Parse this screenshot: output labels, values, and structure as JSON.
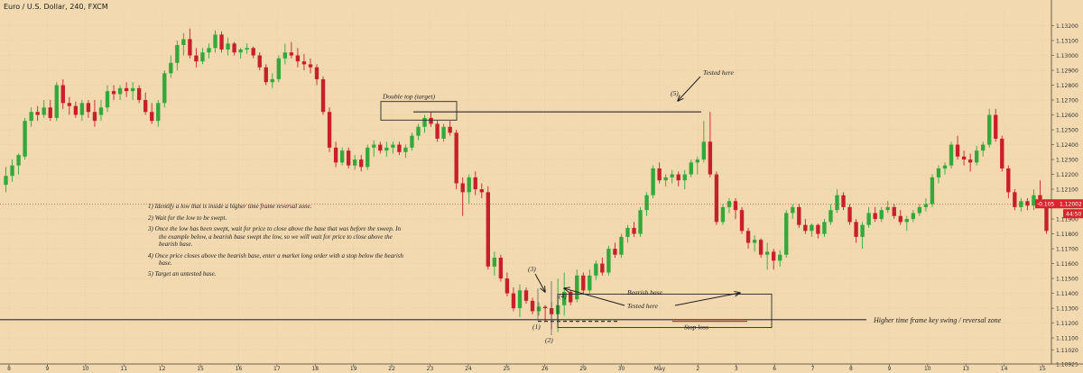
{
  "header": {
    "title": "Euro / U.S. Dollar, 240, FXCM"
  },
  "colors": {
    "background": "#f2d9b0",
    "up": "#35a83b",
    "down": "#c8202a",
    "text": "#222222",
    "badge_red": "#d8242c"
  },
  "instructions": [
    "1) Identify a low that is inside a higher time frame reversal zone.",
    "2) Wait for the low to be swept.",
    "3) Once the low has been swept, wait for price to close above the base that was before the sweep. In the example below, a bearish base swept the low, so we will wait for price to close above the bearish base.",
    "4) Once price closes above the bearish base, enter a market long order with a stop below the bearish base.",
    "5) Target an untested base."
  ],
  "annotations": {
    "double_top": "Double top (target)",
    "tested_here_top": "Tested here",
    "label_5": "(5)",
    "label_3": "(3)",
    "label_4": "(4)",
    "label_1": "(1)",
    "label_2": "(2)",
    "bearish_base": "Bearish base",
    "tested_here_bottom": "Tested here",
    "stop_loss": "Stop loss",
    "htf_zone": "Higher time frame key swing / reversal zone"
  },
  "badges": {
    "change": "-0.105",
    "price": "1.12002",
    "countdown": "44:50"
  },
  "chart_data": {
    "type": "candlestick",
    "title": "Euro / U.S. Dollar, 240, FXCM",
    "ylim": [
      1.10925,
      1.133
    ],
    "y_ticks": [
      "1.13200",
      "1.13100",
      "1.13000",
      "1.12900",
      "1.12800",
      "1.12700",
      "1.12600",
      "1.12500",
      "1.12400",
      "1.12300",
      "1.12200",
      "1.12100",
      "1.12000",
      "1.11900",
      "1.11800",
      "1.11700",
      "1.11600",
      "1.11500",
      "1.11400",
      "1.11300",
      "1.11200",
      "1.11100",
      "1.11020",
      "1.10925"
    ],
    "x_ticks": [
      "8",
      "9",
      "10",
      "11",
      "12",
      "15",
      "16",
      "17",
      "18",
      "19",
      "22",
      "23",
      "24",
      "25",
      "26",
      "29",
      "30",
      "May",
      "2",
      "3",
      "6",
      "7",
      "8",
      "9",
      "10",
      "13",
      "14",
      "15"
    ],
    "key_levels": {
      "double_top": 1.1262,
      "bearish_base_high": 1.11395,
      "bearish_base_low": 1.11255,
      "htf_zone": 1.11223,
      "stop_loss": 1.11212
    },
    "candles": [
      [
        1.1213,
        1.1225,
        1.1208,
        1.1219
      ],
      [
        1.1219,
        1.123,
        1.1215,
        1.1226
      ],
      [
        1.1226,
        1.1234,
        1.122,
        1.1233
      ],
      [
        1.1232,
        1.1258,
        1.123,
        1.1256
      ],
      [
        1.1256,
        1.1265,
        1.1252,
        1.1262
      ],
      [
        1.1262,
        1.1266,
        1.1256,
        1.126
      ],
      [
        1.126,
        1.127,
        1.1258,
        1.1265
      ],
      [
        1.1265,
        1.127,
        1.1256,
        1.1258
      ],
      [
        1.1258,
        1.1282,
        1.1256,
        1.128
      ],
      [
        1.128,
        1.1284,
        1.1264,
        1.1268
      ],
      [
        1.1268,
        1.1272,
        1.126,
        1.1266
      ],
      [
        1.1266,
        1.1269,
        1.1258,
        1.126
      ],
      [
        1.126,
        1.127,
        1.1256,
        1.1268
      ],
      [
        1.1268,
        1.127,
        1.1258,
        1.1262
      ],
      [
        1.1262,
        1.127,
        1.1252,
        1.1256
      ],
      [
        1.126,
        1.127,
        1.1256,
        1.1265
      ],
      [
        1.1265,
        1.128,
        1.1262,
        1.1276
      ],
      [
        1.1276,
        1.128,
        1.127,
        1.1274
      ],
      [
        1.1274,
        1.128,
        1.127,
        1.1278
      ],
      [
        1.1278,
        1.1282,
        1.1272,
        1.1276
      ],
      [
        1.1276,
        1.1282,
        1.127,
        1.1278
      ],
      [
        1.1278,
        1.128,
        1.1268,
        1.127
      ],
      [
        1.127,
        1.1275,
        1.126,
        1.1262
      ],
      [
        1.1262,
        1.1268,
        1.1254,
        1.1256
      ],
      [
        1.1256,
        1.127,
        1.1252,
        1.1268
      ],
      [
        1.1268,
        1.129,
        1.1265,
        1.1288
      ],
      [
        1.1288,
        1.13,
        1.1285,
        1.1295
      ],
      [
        1.1295,
        1.131,
        1.129,
        1.1307
      ],
      [
        1.1307,
        1.1315,
        1.13,
        1.1311
      ],
      [
        1.1311,
        1.1318,
        1.1298,
        1.13
      ],
      [
        1.13,
        1.1305,
        1.1292,
        1.1296
      ],
      [
        1.1296,
        1.1305,
        1.1294,
        1.1302
      ],
      [
        1.1302,
        1.1308,
        1.1298,
        1.1305
      ],
      [
        1.1305,
        1.1317,
        1.1302,
        1.1314
      ],
      [
        1.1314,
        1.1316,
        1.1302,
        1.1304
      ],
      [
        1.1304,
        1.1312,
        1.13,
        1.1308
      ],
      [
        1.1308,
        1.1309,
        1.13,
        1.1302
      ],
      [
        1.1302,
        1.1305,
        1.1298,
        1.1304
      ],
      [
        1.1304,
        1.1308,
        1.1301,
        1.1305
      ],
      [
        1.1305,
        1.1306,
        1.1298,
        1.13
      ],
      [
        1.13,
        1.1302,
        1.129,
        1.1292
      ],
      [
        1.1292,
        1.1294,
        1.128,
        1.1282
      ],
      [
        1.1282,
        1.1288,
        1.1278,
        1.1284
      ],
      [
        1.1284,
        1.13,
        1.1282,
        1.1298
      ],
      [
        1.1298,
        1.1308,
        1.1294,
        1.1302
      ],
      [
        1.1302,
        1.1309,
        1.1298,
        1.13
      ],
      [
        1.13,
        1.1305,
        1.1292,
        1.1296
      ],
      [
        1.1296,
        1.1301,
        1.129,
        1.1294
      ],
      [
        1.1294,
        1.1298,
        1.1288,
        1.1292
      ],
      [
        1.1292,
        1.1294,
        1.128,
        1.1284
      ],
      [
        1.1284,
        1.1286,
        1.126,
        1.1262
      ],
      [
        1.1262,
        1.1265,
        1.1235,
        1.1238
      ],
      [
        1.1238,
        1.1242,
        1.1225,
        1.1228
      ],
      [
        1.1228,
        1.1238,
        1.1226,
        1.1236
      ],
      [
        1.1236,
        1.1238,
        1.1224,
        1.1226
      ],
      [
        1.1226,
        1.1233,
        1.1223,
        1.123
      ],
      [
        1.123,
        1.1233,
        1.1222,
        1.1225
      ],
      [
        1.1225,
        1.124,
        1.1223,
        1.1238
      ],
      [
        1.1238,
        1.1243,
        1.1232,
        1.124
      ],
      [
        1.124,
        1.1242,
        1.1234,
        1.1236
      ],
      [
        1.1236,
        1.1242,
        1.1232,
        1.1238
      ],
      [
        1.1238,
        1.1242,
        1.1234,
        1.124
      ],
      [
        1.124,
        1.1242,
        1.1233,
        1.1235
      ],
      [
        1.1235,
        1.124,
        1.1231,
        1.1238
      ],
      [
        1.1238,
        1.1248,
        1.1236,
        1.1246
      ],
      [
        1.1246,
        1.1254,
        1.1243,
        1.1252
      ],
      [
        1.1252,
        1.126,
        1.1248,
        1.1258
      ],
      [
        1.1258,
        1.1262,
        1.1252,
        1.1254
      ],
      [
        1.1254,
        1.1256,
        1.1242,
        1.1244
      ],
      [
        1.1244,
        1.1254,
        1.1242,
        1.1252
      ],
      [
        1.1252,
        1.1256,
        1.1246,
        1.1248
      ],
      [
        1.1248,
        1.125,
        1.121,
        1.1214
      ],
      [
        1.1214,
        1.1218,
        1.1192,
        1.1208
      ],
      [
        1.1208,
        1.122,
        1.12,
        1.1218
      ],
      [
        1.1218,
        1.1222,
        1.1206,
        1.121
      ],
      [
        1.121,
        1.1214,
        1.1204,
        1.1208
      ],
      [
        1.1208,
        1.1212,
        1.1156,
        1.1158
      ],
      [
        1.1158,
        1.1168,
        1.1152,
        1.1164
      ],
      [
        1.1164,
        1.1166,
        1.1148,
        1.115
      ],
      [
        1.115,
        1.1154,
        1.1138,
        1.114
      ],
      [
        1.114,
        1.1144,
        1.1128,
        1.113
      ],
      [
        1.113,
        1.1146,
        1.1124,
        1.1142
      ],
      [
        1.1142,
        1.1144,
        1.1133,
        1.1135
      ],
      [
        1.1135,
        1.1137,
        1.1126,
        1.1128
      ],
      [
        1.1128,
        1.1134,
        1.1125,
        1.1131
      ],
      [
        1.1131,
        1.1132,
        1.1121,
        1.113
      ],
      [
        1.113,
        1.1134,
        1.1116,
        1.1126
      ],
      [
        1.1126,
        1.115,
        1.1114,
        1.1132
      ],
      [
        1.1132,
        1.1154,
        1.1125,
        1.1141
      ],
      [
        1.1141,
        1.1142,
        1.1132,
        1.1134
      ],
      [
        1.1136,
        1.1156,
        1.1134,
        1.1152
      ],
      [
        1.1152,
        1.1154,
        1.114,
        1.1142
      ],
      [
        1.1142,
        1.1156,
        1.114,
        1.1152
      ],
      [
        1.1152,
        1.1162,
        1.1149,
        1.116
      ],
      [
        1.116,
        1.1164,
        1.1152,
        1.1154
      ],
      [
        1.1154,
        1.1172,
        1.1152,
        1.117
      ],
      [
        1.117,
        1.1174,
        1.1164,
        1.1166
      ],
      [
        1.1166,
        1.118,
        1.1164,
        1.1178
      ],
      [
        1.1178,
        1.1186,
        1.1174,
        1.1184
      ],
      [
        1.1184,
        1.1188,
        1.1178,
        1.118
      ],
      [
        1.118,
        1.1198,
        1.1178,
        1.1196
      ],
      [
        1.1196,
        1.1208,
        1.1192,
        1.1206
      ],
      [
        1.1206,
        1.1226,
        1.1204,
        1.1224
      ],
      [
        1.1224,
        1.1228,
        1.1214,
        1.1216
      ],
      [
        1.1216,
        1.122,
        1.1212,
        1.1218
      ],
      [
        1.1218,
        1.1223,
        1.1214,
        1.122
      ],
      [
        1.122,
        1.1222,
        1.1212,
        1.1216
      ],
      [
        1.1216,
        1.1223,
        1.121,
        1.122
      ],
      [
        1.122,
        1.123,
        1.1218,
        1.1228
      ],
      [
        1.1228,
        1.1232,
        1.122,
        1.123
      ],
      [
        1.123,
        1.1256,
        1.1228,
        1.1242
      ],
      [
        1.1242,
        1.1262,
        1.1218,
        1.122
      ],
      [
        1.122,
        1.1222,
        1.1186,
        1.1188
      ],
      [
        1.1188,
        1.12,
        1.1186,
        1.1198
      ],
      [
        1.1198,
        1.1204,
        1.1194,
        1.1202
      ],
      [
        1.1202,
        1.1204,
        1.119,
        1.1196
      ],
      [
        1.1196,
        1.1198,
        1.118,
        1.1182
      ],
      [
        1.1182,
        1.1184,
        1.117,
        1.1174
      ],
      [
        1.1174,
        1.1179,
        1.1168,
        1.1176
      ],
      [
        1.1176,
        1.1177,
        1.1164,
        1.1166
      ],
      [
        1.1166,
        1.1174,
        1.1156,
        1.1168
      ],
      [
        1.1168,
        1.117,
        1.1156,
        1.1162
      ],
      [
        1.1162,
        1.1169,
        1.1158,
        1.1166
      ],
      [
        1.1166,
        1.1196,
        1.1164,
        1.1194
      ],
      [
        1.1194,
        1.12,
        1.119,
        1.1198
      ],
      [
        1.1198,
        1.12,
        1.1184,
        1.1186
      ],
      [
        1.1186,
        1.119,
        1.118,
        1.1182
      ],
      [
        1.1182,
        1.1187,
        1.1178,
        1.1186
      ],
      [
        1.1186,
        1.1187,
        1.1177,
        1.118
      ],
      [
        1.118,
        1.119,
        1.1178,
        1.1188
      ],
      [
        1.1188,
        1.12,
        1.1186,
        1.1196
      ],
      [
        1.1196,
        1.121,
        1.1194,
        1.1206
      ],
      [
        1.1206,
        1.1208,
        1.1196,
        1.1198
      ],
      [
        1.1198,
        1.12,
        1.1186,
        1.1188
      ],
      [
        1.1188,
        1.119,
        1.1174,
        1.1178
      ],
      [
        1.1178,
        1.1188,
        1.117,
        1.1186
      ],
      [
        1.1186,
        1.1198,
        1.1184,
        1.1194
      ],
      [
        1.1194,
        1.1198,
        1.1188,
        1.119
      ],
      [
        1.119,
        1.1198,
        1.1188,
        1.1196
      ],
      [
        1.1196,
        1.1202,
        1.1194,
        1.1198
      ],
      [
        1.1198,
        1.12,
        1.119,
        1.1192
      ],
      [
        1.1192,
        1.1196,
        1.1186,
        1.1188
      ],
      [
        1.1188,
        1.1192,
        1.1182,
        1.119
      ],
      [
        1.119,
        1.1196,
        1.1188,
        1.1194
      ],
      [
        1.1194,
        1.12,
        1.1192,
        1.1198
      ],
      [
        1.1198,
        1.1204,
        1.1195,
        1.12
      ],
      [
        1.12,
        1.122,
        1.1198,
        1.1218
      ],
      [
        1.1218,
        1.1226,
        1.1214,
        1.1224
      ],
      [
        1.1224,
        1.1228,
        1.122,
        1.1226
      ],
      [
        1.1226,
        1.1242,
        1.1224,
        1.124
      ],
      [
        1.124,
        1.1246,
        1.123,
        1.1232
      ],
      [
        1.1232,
        1.1236,
        1.1226,
        1.123
      ],
      [
        1.123,
        1.1234,
        1.1222,
        1.1228
      ],
      [
        1.1228,
        1.1239,
        1.1226,
        1.1236
      ],
      [
        1.1236,
        1.1242,
        1.1232,
        1.124
      ],
      [
        1.124,
        1.1264,
        1.1238,
        1.126
      ],
      [
        1.126,
        1.1264,
        1.1242,
        1.1244
      ],
      [
        1.1244,
        1.1246,
        1.1222,
        1.1224
      ],
      [
        1.1224,
        1.1226,
        1.1204,
        1.1208
      ],
      [
        1.1208,
        1.121,
        1.1196,
        1.1198
      ],
      [
        1.1198,
        1.1204,
        1.1195,
        1.1202
      ],
      [
        1.1202,
        1.1204,
        1.1196,
        1.1199
      ],
      [
        1.1199,
        1.121,
        1.1196,
        1.1206
      ],
      [
        1.1206,
        1.1216,
        1.1198,
        1.12
      ],
      [
        1.12,
        1.1202,
        1.118,
        1.1182
      ]
    ]
  }
}
